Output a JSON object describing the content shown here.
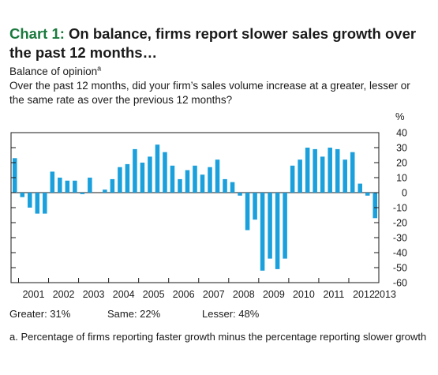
{
  "title": {
    "prefix": "Chart 1:",
    "text": "On balance, firms report slower sales growth over the past 12 months…"
  },
  "subtitle": {
    "text": "Balance of opinion",
    "superscript": "a"
  },
  "question": "Over the past 12 months, did your firm’s sales volume increase at a greater, lesser or the same rate as over the previous 12 months?",
  "stats": {
    "greater": "Greater: 31%",
    "same": "Same: 22%",
    "lesser": "Lesser: 48%"
  },
  "footnote": "a. Percentage of firms reporting faster growth minus the percentage reporting slower growth",
  "chart_data": {
    "type": "bar",
    "unit_label": "%",
    "ylim": [
      -60,
      40
    ],
    "yticks": [
      -60,
      -50,
      -40,
      -30,
      -20,
      -10,
      0,
      10,
      20,
      30,
      40
    ],
    "ytick_labels": [
      "-60",
      "-50",
      "-40",
      "-30",
      "-20",
      "-10",
      "0",
      "10",
      "20",
      "30",
      "40"
    ],
    "x_year_labels": [
      "2001",
      "2002",
      "2003",
      "2004",
      "2005",
      "2006",
      "2007",
      "2008",
      "2009",
      "2010",
      "2011",
      "2012",
      "2013"
    ],
    "quarters_per_year": 4,
    "first_year_start": 2000.75,
    "bar_color": "#1aa0dc",
    "grid": false,
    "values": [
      23,
      -3,
      -10,
      -14,
      -14,
      14,
      10,
      8,
      8,
      -1,
      10,
      0,
      2,
      9,
      17,
      19,
      29,
      20,
      24,
      32,
      27,
      18,
      9,
      15,
      18,
      12,
      17,
      22,
      9,
      7,
      -2,
      -25,
      -18,
      -52,
      -44,
      -51,
      -44,
      18,
      22,
      30,
      29,
      24,
      30,
      29,
      22,
      27,
      6,
      -2,
      -17
    ]
  }
}
